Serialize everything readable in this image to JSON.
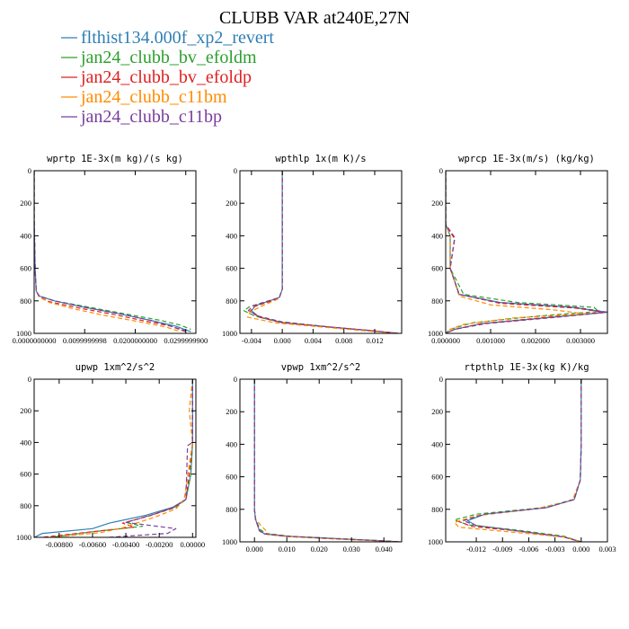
{
  "figure": {
    "title": "CLUBB VAR at240E,27N",
    "legend": [
      {
        "label": "flthist134.000f_xp2_revert",
        "color": "#2f7fb4"
      },
      {
        "label": "jan24_clubb_bv_efoldm",
        "color": "#2ca02c"
      },
      {
        "label": "jan24_clubb_bv_efoldp",
        "color": "#e02020"
      },
      {
        "label": "jan24_clubb_c11bm",
        "color": "#ff8c00"
      },
      {
        "label": "jan24_clubb_c11bp",
        "color": "#7a3d9c"
      }
    ]
  },
  "chart_data": [
    {
      "type": "line",
      "title": "wprtp  1E-3x(m kg)/(s kg)",
      "ylim": [
        1000,
        0
      ],
      "xlim": [
        0,
        0.032
      ],
      "xticks": [
        0,
        0.01,
        0.02,
        0.03
      ],
      "xtick_labels": [
        "0.0000000000",
        "0.0099999998",
        "0.0200000000",
        "0.0299999900"
      ],
      "yticks": [
        0,
        200,
        400,
        600,
        800,
        1000
      ],
      "series": [
        {
          "x": [
            0,
            0,
            0.0002,
            0.0004,
            0.001,
            0.004,
            0.01,
            0.017,
            0.023,
            0.028,
            0.031
          ],
          "y": [
            0,
            300,
            600,
            740,
            770,
            800,
            840,
            880,
            920,
            955,
            990
          ]
        },
        {
          "x": [
            0,
            0,
            0.0002,
            0.0004,
            0.001,
            0.004,
            0.011,
            0.018,
            0.025,
            0.029,
            0.031
          ],
          "y": [
            0,
            300,
            600,
            740,
            770,
            800,
            840,
            880,
            920,
            950,
            975
          ]
        },
        {
          "x": [
            0,
            0,
            0.0002,
            0.0004,
            0.001,
            0.003,
            0.009,
            0.016,
            0.022,
            0.027,
            0.03
          ],
          "y": [
            0,
            300,
            600,
            740,
            775,
            805,
            845,
            885,
            925,
            955,
            990
          ]
        },
        {
          "x": [
            0,
            0,
            0.0002,
            0.0004,
            0.0012,
            0.003,
            0.008,
            0.014,
            0.021,
            0.026,
            0.029
          ],
          "y": [
            0,
            300,
            600,
            740,
            780,
            810,
            850,
            890,
            930,
            960,
            990
          ]
        },
        {
          "x": [
            0,
            0,
            0.0002,
            0.0004,
            0.001,
            0.004,
            0.01,
            0.017,
            0.023,
            0.027,
            0.03
          ],
          "y": [
            0,
            300,
            600,
            740,
            770,
            800,
            840,
            880,
            920,
            955,
            985
          ]
        }
      ]
    },
    {
      "type": "line",
      "title": "wpthlp  1x(m K)/s",
      "ylim": [
        1000,
        0
      ],
      "xlim": [
        -0.0055,
        0.0155
      ],
      "xticks": [
        -0.004,
        0,
        0.004,
        0.008,
        0.012
      ],
      "xtick_labels": [
        "-0.004",
        "0.000",
        "0.004",
        "0.008",
        "0.012"
      ],
      "yticks": [
        0,
        200,
        400,
        600,
        800,
        1000
      ],
      "series": [
        {
          "x": [
            0,
            0,
            0,
            -0.0004,
            -0.0035,
            -0.004,
            -0.003,
            0.0,
            0.006,
            0.012,
            0.015
          ],
          "y": [
            0,
            400,
            730,
            780,
            830,
            860,
            900,
            935,
            960,
            985,
            1000
          ]
        },
        {
          "x": [
            0,
            0,
            0,
            -0.0004,
            -0.0042,
            -0.005,
            -0.0035,
            0.0,
            0.006,
            0.012,
            0.015
          ],
          "y": [
            0,
            400,
            730,
            780,
            835,
            860,
            895,
            930,
            960,
            985,
            1000
          ]
        },
        {
          "x": [
            0,
            0,
            0,
            -0.0004,
            -0.0036,
            -0.0042,
            -0.003,
            0.0,
            0.006,
            0.012,
            0.015
          ],
          "y": [
            0,
            400,
            730,
            785,
            835,
            865,
            900,
            935,
            960,
            985,
            1000
          ]
        },
        {
          "x": [
            0,
            0,
            0,
            -0.0004,
            -0.003,
            -0.0042,
            -0.0045,
            -0.001,
            0.005,
            0.011,
            0.015
          ],
          "y": [
            0,
            400,
            730,
            785,
            840,
            870,
            900,
            935,
            960,
            985,
            1000
          ]
        },
        {
          "x": [
            0,
            0,
            0,
            -0.0004,
            -0.0038,
            -0.0044,
            -0.003,
            0.0,
            0.006,
            0.012,
            0.015
          ],
          "y": [
            0,
            400,
            730,
            780,
            830,
            860,
            895,
            930,
            960,
            985,
            1000
          ]
        }
      ]
    },
    {
      "type": "line",
      "title": "wprcp  1E-3x(m/s) (kg/kg)",
      "ylim": [
        1000,
        0
      ],
      "xlim": [
        0,
        0.0036
      ],
      "xticks": [
        0,
        0.001,
        0.002,
        0.003
      ],
      "xtick_labels": [
        "0.000000",
        "0.001000",
        "0.002000",
        "0.003000"
      ],
      "yticks": [
        0,
        200,
        400,
        600,
        800,
        1000
      ],
      "series": [
        {
          "x": [
            0,
            0,
            0.0001,
            0.0001,
            0.0003,
            0.0012,
            0.0028,
            0.0036,
            0.0024,
            0.0008,
            0.0002,
            0
          ],
          "y": [
            0,
            330,
            400,
            600,
            760,
            810,
            840,
            870,
            900,
            940,
            975,
            1000
          ]
        },
        {
          "x": [
            0,
            0,
            0.0001,
            0.0001,
            0.0004,
            0.0016,
            0.0033,
            0.0034,
            0.002,
            0.0006,
            0.0001,
            0
          ],
          "y": [
            0,
            330,
            400,
            600,
            760,
            810,
            840,
            865,
            895,
            935,
            975,
            1000
          ]
        },
        {
          "x": [
            0,
            0,
            0.0002,
            0.0001,
            0.0003,
            0.0012,
            0.0029,
            0.0035,
            0.0023,
            0.0008,
            0.0002,
            0
          ],
          "y": [
            0,
            330,
            410,
            600,
            760,
            815,
            845,
            870,
            900,
            940,
            975,
            1000
          ]
        },
        {
          "x": [
            0,
            0,
            0.0001,
            0.0001,
            0.0003,
            0.001,
            0.0024,
            0.0031,
            0.0015,
            0.0004,
            0.0001,
            0
          ],
          "y": [
            0,
            330,
            400,
            600,
            770,
            825,
            855,
            880,
            905,
            945,
            975,
            1000
          ]
        },
        {
          "x": [
            0,
            0,
            0.0002,
            0.0001,
            0.0003,
            0.0012,
            0.0029,
            0.0036,
            0.0025,
            0.0009,
            0.0002,
            0
          ],
          "y": [
            0,
            330,
            420,
            600,
            760,
            810,
            840,
            870,
            900,
            940,
            975,
            1000
          ]
        }
      ]
    },
    {
      "type": "line",
      "title": "upwp  1xm^2/s^2",
      "ylim": [
        1000,
        0
      ],
      "xlim": [
        -0.0095,
        0.0002
      ],
      "xticks": [
        -0.008,
        -0.006,
        -0.004,
        -0.002,
        0
      ],
      "xtick_labels": [
        "-0.00800",
        "-0.00600",
        "-0.00400",
        "-0.00200",
        "0.00000"
      ],
      "yticks": [
        0,
        200,
        400,
        600,
        800,
        1000
      ],
      "series": [
        {
          "x": [
            0,
            0,
            -0.0001,
            -0.0004,
            -0.0012,
            -0.0028,
            -0.005,
            -0.006,
            -0.009,
            -0.0095
          ],
          "y": [
            0,
            400,
            600,
            760,
            810,
            860,
            910,
            945,
            975,
            1000
          ]
        },
        {
          "x": [
            0,
            0,
            -0.0001,
            -0.0004,
            -0.001,
            -0.0025,
            -0.004,
            -0.003,
            -0.006,
            -0.0085
          ],
          "y": [
            0,
            400,
            600,
            760,
            810,
            860,
            905,
            930,
            965,
            1000
          ]
        },
        {
          "x": [
            0,
            0,
            -0.0002,
            -0.0004,
            -0.0012,
            -0.0026,
            -0.0042,
            -0.0035,
            -0.0065,
            -0.009
          ],
          "y": [
            0,
            400,
            600,
            760,
            815,
            865,
            910,
            935,
            970,
            1000
          ]
        },
        {
          "x": [
            0,
            -0.0002,
            0,
            -0.0005,
            -0.001,
            -0.0022,
            -0.0035,
            -0.0042,
            -0.0055,
            -0.0085
          ],
          "y": [
            0,
            200,
            400,
            760,
            820,
            870,
            915,
            940,
            970,
            1000
          ]
        },
        {
          "x": [
            0,
            0,
            -0.0003,
            -0.0004,
            -0.0011,
            -0.0025,
            -0.004,
            -0.001,
            -0.0015,
            -0.005
          ],
          "y": [
            0,
            400,
            420,
            760,
            810,
            860,
            905,
            945,
            975,
            1000
          ]
        }
      ]
    },
    {
      "type": "line",
      "title": "vpwp  1xm^2/s^2",
      "ylim": [
        1000,
        0
      ],
      "xlim": [
        -0.0045,
        0.0455
      ],
      "xticks": [
        0,
        0.01,
        0.02,
        0.03,
        0.04
      ],
      "xtick_labels": [
        "0.000",
        "0.010",
        "0.020",
        "0.030",
        "0.040"
      ],
      "yticks": [
        0,
        200,
        400,
        600,
        800,
        1000
      ],
      "series": [
        {
          "x": [
            0,
            0,
            0,
            0.0003,
            0.001,
            0.0015,
            0.003,
            0.01,
            0.025,
            0.038,
            0.045
          ],
          "y": [
            0,
            400,
            800,
            860,
            900,
            930,
            950,
            965,
            980,
            992,
            1000
          ]
        },
        {
          "x": [
            0,
            0,
            0,
            0.0003,
            0.0012,
            0.0018,
            0.0035,
            0.011,
            0.026,
            0.039,
            0.045
          ],
          "y": [
            0,
            400,
            800,
            860,
            900,
            925,
            948,
            965,
            980,
            992,
            1000
          ]
        },
        {
          "x": [
            0,
            0,
            0,
            0.0003,
            0.001,
            0.0015,
            0.003,
            0.01,
            0.025,
            0.038,
            0.045
          ],
          "y": [
            0,
            400,
            800,
            860,
            900,
            932,
            952,
            967,
            981,
            993,
            1000
          ]
        },
        {
          "x": [
            0,
            0,
            0,
            0.0004,
            0.002,
            0.0035,
            0.004,
            0.01,
            0.024,
            0.037,
            0.045
          ],
          "y": [
            0,
            400,
            800,
            860,
            900,
            930,
            955,
            968,
            982,
            993,
            1000
          ]
        },
        {
          "x": [
            0,
            0,
            0,
            0.0003,
            0.001,
            0.0015,
            0.003,
            0.01,
            0.025,
            0.038,
            0.045
          ],
          "y": [
            0,
            400,
            800,
            860,
            900,
            930,
            950,
            965,
            980,
            992,
            1000
          ]
        }
      ]
    },
    {
      "type": "line",
      "title": "rtpthlp  1E-3x(kg K)/kg",
      "ylim": [
        1000,
        0
      ],
      "xlim": [
        -0.0155,
        0.003
      ],
      "xticks": [
        -0.012,
        -0.009,
        -0.006,
        -0.003,
        0,
        0.003
      ],
      "xtick_labels": [
        "-0.012",
        "-0.009",
        "-0.006",
        "-0.003",
        "0.000",
        "0.003"
      ],
      "yticks": [
        0,
        200,
        400,
        600,
        800,
        1000
      ],
      "series": [
        {
          "x": [
            0,
            0,
            -0.0001,
            -0.0008,
            -0.004,
            -0.011,
            -0.013,
            -0.012,
            -0.007,
            -0.002,
            0
          ],
          "y": [
            0,
            400,
            620,
            740,
            790,
            830,
            870,
            900,
            935,
            970,
            1000
          ]
        },
        {
          "x": [
            0,
            0,
            -0.0001,
            -0.0008,
            -0.0045,
            -0.012,
            -0.0145,
            -0.013,
            -0.007,
            -0.002,
            0
          ],
          "y": [
            0,
            400,
            620,
            740,
            790,
            830,
            865,
            895,
            930,
            965,
            1000
          ]
        },
        {
          "x": [
            0,
            0,
            -0.0001,
            -0.0009,
            -0.0042,
            -0.0115,
            -0.014,
            -0.0125,
            -0.007,
            -0.002,
            0
          ],
          "y": [
            0,
            400,
            620,
            740,
            790,
            835,
            875,
            905,
            935,
            970,
            1000
          ]
        },
        {
          "x": [
            0,
            0,
            -0.0001,
            -0.001,
            -0.005,
            -0.012,
            -0.0145,
            -0.014,
            -0.008,
            -0.002,
            0
          ],
          "y": [
            0,
            400,
            620,
            745,
            795,
            840,
            880,
            910,
            940,
            970,
            1000
          ]
        },
        {
          "x": [
            0,
            0,
            -0.0001,
            -0.0008,
            -0.004,
            -0.011,
            -0.0135,
            -0.012,
            -0.007,
            -0.002,
            0
          ],
          "y": [
            0,
            400,
            620,
            740,
            790,
            830,
            870,
            900,
            935,
            970,
            1000
          ]
        }
      ]
    }
  ]
}
